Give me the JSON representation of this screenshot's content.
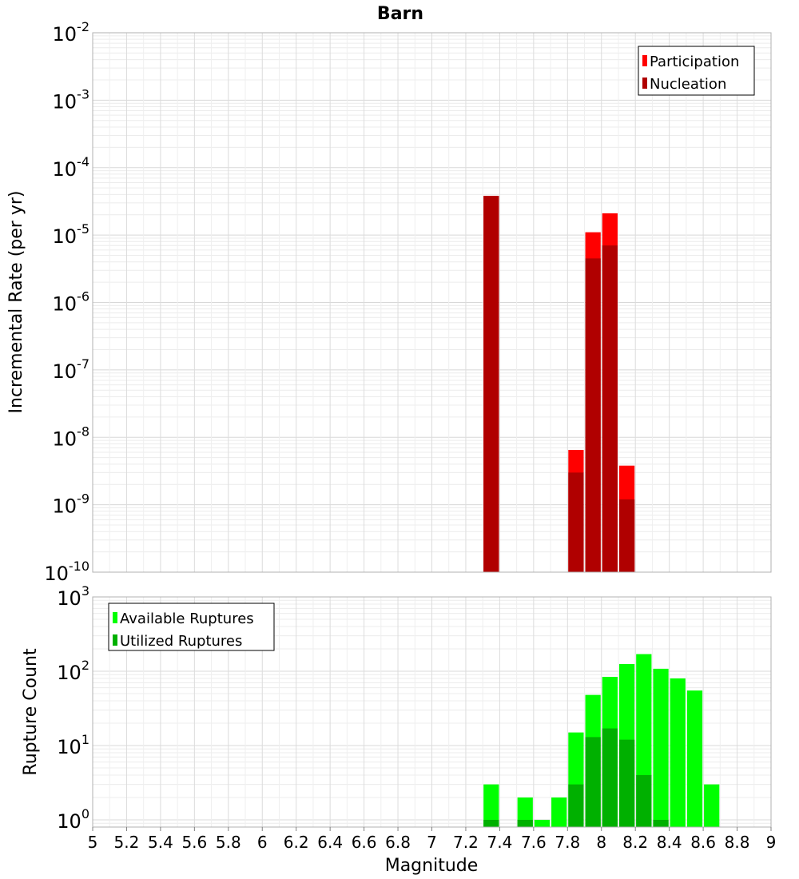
{
  "chart_data": [
    {
      "type": "bar",
      "title": "Barn",
      "ylabel": "Incremental Rate (per yr)",
      "yscale": "log",
      "ylim": [
        1e-10,
        0.01
      ],
      "xlim": [
        5,
        9
      ],
      "bin_width": 0.1,
      "grid": true,
      "legend_position": "top-right",
      "y_tick_labels": [
        {
          "base": "10",
          "exp": "-2"
        },
        {
          "base": "10",
          "exp": "-3"
        },
        {
          "base": "10",
          "exp": "-4"
        },
        {
          "base": "10",
          "exp": "-5"
        },
        {
          "base": "10",
          "exp": "-6"
        },
        {
          "base": "10",
          "exp": "-7"
        },
        {
          "base": "10",
          "exp": "-8"
        },
        {
          "base": "10",
          "exp": "-9"
        },
        {
          "base": "10",
          "exp": "-10"
        }
      ],
      "series": [
        {
          "name": "Participation",
          "color": "#ff0000",
          "x": [
            7.35,
            7.85,
            7.95,
            8.05,
            8.15
          ],
          "values": [
            3.8e-05,
            6.5e-09,
            1.1e-05,
            2.1e-05,
            3.8e-09
          ]
        },
        {
          "name": "Nucleation",
          "color": "#b00000",
          "x": [
            7.35,
            7.85,
            7.95,
            8.05,
            8.15
          ],
          "values": [
            3.8e-05,
            3e-09,
            4.5e-06,
            7e-06,
            1.2e-09
          ]
        }
      ]
    },
    {
      "type": "bar",
      "xlabel": "Magnitude",
      "ylabel": "Rupture Count",
      "yscale": "log",
      "ylim": [
        0.8,
        1000
      ],
      "xlim": [
        5,
        9
      ],
      "bin_width": 0.1,
      "grid": true,
      "legend_position": "top-left",
      "x_tick_labels": [
        "5",
        "5.2",
        "5.4",
        "5.6",
        "5.8",
        "6",
        "6.2",
        "6.4",
        "6.6",
        "6.8",
        "7",
        "7.2",
        "7.4",
        "7.6",
        "7.8",
        "8",
        "8.2",
        "8.4",
        "8.6",
        "8.8",
        "9"
      ],
      "y_tick_labels": [
        {
          "base": "10",
          "exp": "3"
        },
        {
          "base": "10",
          "exp": "2"
        },
        {
          "base": "10",
          "exp": "1"
        },
        {
          "base": "10",
          "exp": "0"
        }
      ],
      "series": [
        {
          "name": "Available Ruptures",
          "color": "#00ff00",
          "x": [
            7.35,
            7.55,
            7.65,
            7.75,
            7.85,
            7.95,
            8.05,
            8.15,
            8.25,
            8.35,
            8.45,
            8.55,
            8.65
          ],
          "values": [
            3,
            2,
            1,
            2,
            15,
            48,
            84,
            125,
            170,
            108,
            80,
            55,
            3
          ]
        },
        {
          "name": "Utilized Ruptures",
          "color": "#00b000",
          "x": [
            7.35,
            7.55,
            7.85,
            7.95,
            8.05,
            8.15,
            8.25,
            8.35
          ],
          "values": [
            1,
            1,
            3,
            13,
            17,
            12,
            4,
            1
          ]
        }
      ]
    }
  ]
}
